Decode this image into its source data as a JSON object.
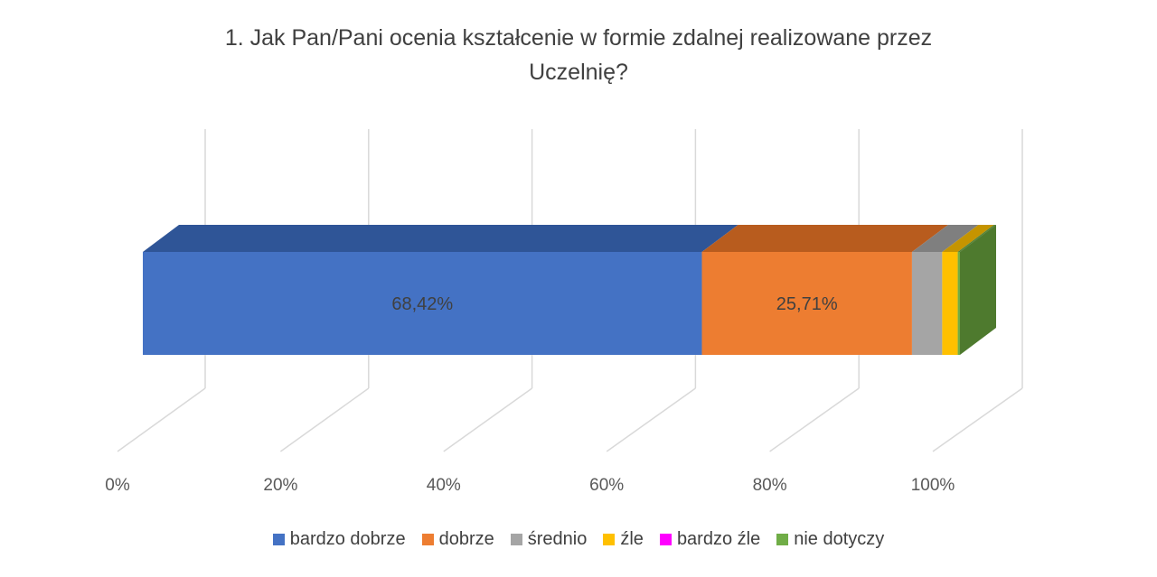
{
  "title_line1": "1. Jak Pan/Pani ocenia kształcenie w formie zdalnej realizowane przez",
  "title_line2": "Uczelnię?",
  "chart_data": {
    "type": "bar",
    "orientation": "horizontal",
    "stacked": "100%",
    "three_d": true,
    "title": "1. Jak Pan/Pani ocenia kształcenie w formie zdalnej realizowane przez Uczelnię?",
    "xlim": [
      0,
      100
    ],
    "x_ticks": [
      "0%",
      "20%",
      "40%",
      "60%",
      "80%",
      "100%"
    ],
    "grid": true,
    "legend_position": "bottom",
    "series": [
      {
        "name": "bardzo dobrze",
        "value": 68.42,
        "label": "68,42%",
        "color": "#4472C4",
        "top_color": "#2F5597",
        "side_color": "#2F5597"
      },
      {
        "name": "dobrze",
        "value": 25.71,
        "label": "25,71%",
        "color": "#ED7D31",
        "top_color": "#B85C1E",
        "side_color": "#B85C1E"
      },
      {
        "name": "średnio",
        "value": 3.7,
        "label": "",
        "color": "#A5A5A5",
        "top_color": "#7F7F7F",
        "side_color": "#7F7F7F"
      },
      {
        "name": "źle",
        "value": 1.9,
        "label": "",
        "color": "#FFC000",
        "top_color": "#C59400",
        "side_color": "#C59400"
      },
      {
        "name": "bardzo źle",
        "value": 0,
        "label": "",
        "color": "#FF00FF",
        "top_color": "#C000C0",
        "side_color": "#C000C0"
      },
      {
        "name": "nie dotyczy",
        "value": 0.27,
        "label": "",
        "color": "#70AD47",
        "top_color": "#548235",
        "side_color": "#4E7A2E"
      }
    ]
  }
}
